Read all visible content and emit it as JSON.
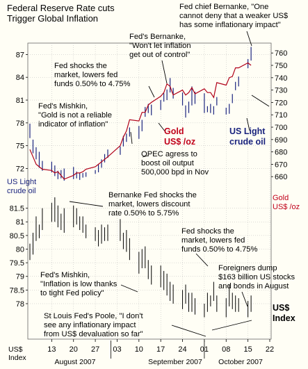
{
  "header": {
    "title": "Federal Reserve Rate cuts\nTrigger Global Inflation"
  },
  "annotations": {
    "a_bernanke_weaker": "Fed chief Bernanke, \"One\ncannot deny that a weaker US$\nhas some inflationary impact\"",
    "a_bernanke_inflation": "Fed's Bernanke,\n\"Won't let inflation\nget out of control\"",
    "a_fed_shocks_1": "Fed shocks the\nmarket, lowers fed\nfunds 0.50% to 4.75%",
    "a_mishkin_gold": "Fed's Mishkin,\n\"Gold is not a reliable\nindicator of inflation\"",
    "a_opec": "OPEC agress to\nboost oil output\n500,000 bpd in Nov",
    "a_discount": "Bernanke Fed shocks the\nmarket, lowers discount\nrate 0.50% to 5.75%",
    "a_fed_shocks_2": "Fed shocks the\nmarket, lowers fed\nfunds 0.50% to 4.75%",
    "a_mishkin_low": "Fed's Mishkin,\n\"Inflation is low thanks\nto tight Fed policy\"",
    "a_foreigners": "Foreigners dump\n$163 billion US stocks\nand bonds in August",
    "a_poole": "St Louis Fed's Poole, \"I don't\nsee any inflationary impact\nfrom US$ devaluation so far\""
  },
  "labels": {
    "gold_bold": "Gold\nUS$ /oz",
    "oil_bold": "US Light\ncrude oil",
    "oil_left": "US Light\ncrude oil",
    "gold_right": "Gold\nUS$ /oz",
    "usd_index_bold": "US$\nIndex",
    "usd_index_left": "US$\nIndex"
  },
  "colors": {
    "gold": "#b00018",
    "oil": "#1a237e",
    "usd": "#000000",
    "grid": "#b8b8b8",
    "bg": "#fffef5",
    "connector": "#000000"
  },
  "chart_data": [
    {
      "type": "line",
      "x_type": "date",
      "x": [
        "2007-08-06",
        "2007-08-07",
        "2007-08-08",
        "2007-08-09",
        "2007-08-10",
        "2007-08-13",
        "2007-08-14",
        "2007-08-15",
        "2007-08-16",
        "2007-08-17",
        "2007-08-20",
        "2007-08-21",
        "2007-08-22",
        "2007-08-23",
        "2007-08-24",
        "2007-08-27",
        "2007-08-28",
        "2007-08-29",
        "2007-08-30",
        "2007-08-31",
        "2007-09-04",
        "2007-09-05",
        "2007-09-06",
        "2007-09-07",
        "2007-09-10",
        "2007-09-11",
        "2007-09-12",
        "2007-09-13",
        "2007-09-14",
        "2007-09-17",
        "2007-09-18",
        "2007-09-19",
        "2007-09-20",
        "2007-09-21",
        "2007-09-24",
        "2007-09-25",
        "2007-09-26",
        "2007-09-27",
        "2007-09-28",
        "2007-10-01",
        "2007-10-02",
        "2007-10-03",
        "2007-10-04",
        "2007-10-05",
        "2007-10-08",
        "2007-10-09",
        "2007-10-10",
        "2007-10-11",
        "2007-10-12",
        "2007-10-15",
        "2007-10-16"
      ],
      "x_ticks": [
        "13",
        "20",
        "27",
        "03",
        "10",
        "17",
        "24",
        "01",
        "08",
        "15",
        "22"
      ],
      "x_month_labels": [
        "August 2007",
        "September 2007",
        "October 2007"
      ],
      "series": [
        {
          "name": "US Light crude oil",
          "axis": "left",
          "style": "bar",
          "high": [
            77.9,
            75.8,
            74.8,
            74.2,
            73.0,
            72.9,
            72.4,
            71.7,
            71.8,
            72.0,
            72.2,
            71.6,
            71.4,
            71.4,
            71.5,
            71.8,
            72.6,
            73.2,
            73.9,
            74.5,
            74.9,
            76.3,
            76.6,
            77.4,
            77.6,
            78.4,
            80.1,
            80.5,
            80.4,
            81.0,
            81.9,
            82.4,
            83.9,
            82.6,
            82.0,
            80.3,
            80.8,
            82.8,
            82.1,
            81.9,
            80.2,
            80.5,
            80.2,
            81.4,
            80.0,
            80.5,
            81.8,
            83.4,
            84.1,
            86.4,
            88.0
          ],
          "low": [
            76.0,
            74.0,
            73.2,
            72.1,
            71.7,
            71.5,
            71.0,
            70.6,
            70.7,
            70.4,
            70.6,
            70.7,
            70.5,
            70.8,
            70.9,
            71.3,
            71.5,
            72.1,
            72.8,
            73.4,
            73.8,
            74.9,
            75.5,
            76.2,
            75.9,
            76.9,
            78.8,
            79.3,
            79.0,
            79.7,
            80.8,
            81.0,
            82.0,
            81.2,
            80.3,
            78.7,
            79.3,
            80.3,
            80.5,
            79.3,
            79.4,
            79.3,
            79.1,
            80.3,
            79.1,
            79.2,
            80.6,
            82.3,
            82.8,
            85.2,
            86.2
          ],
          "ylim": [
            69.3,
            88.5
          ]
        },
        {
          "name": "Gold US$ /oz",
          "axis": "right",
          "style": "line",
          "values": [
            682,
            676,
            670,
            668,
            666,
            665,
            663,
            664,
            661,
            658,
            661,
            663,
            663,
            664,
            666,
            668,
            670,
            672,
            674,
            676,
            685,
            692,
            697,
            706,
            705,
            712,
            712,
            718,
            720,
            725,
            728,
            735,
            733,
            726,
            730,
            726,
            728,
            732,
            727,
            731,
            728,
            728,
            724,
            736,
            734,
            740,
            741,
            748,
            748,
            752,
            750
          ],
          "ylim": [
            650,
            768
          ]
        },
        {
          "name": "US$ Index",
          "axis": "right_lower",
          "style": "bar",
          "high": [
            80.2,
            80.6,
            81.2,
            80.9,
            81.5,
            81.7,
            81.9,
            81.6,
            81.3,
            81.5,
            81.6,
            81.5,
            81.2,
            81.2,
            80.9,
            80.8,
            80.7,
            80.9,
            80.8,
            80.9,
            81.1,
            80.6,
            80.7,
            80.4,
            79.9,
            80.0,
            80.1,
            79.6,
            79.4,
            79.4,
            79.2,
            79.1,
            78.8,
            78.7,
            78.5,
            78.7,
            78.4,
            78.4,
            78.2,
            78.0,
            78.4,
            78.3,
            78.8,
            78.3,
            78.2,
            78.7,
            78.4,
            78.3,
            78.2,
            78.1,
            78.3
          ],
          "low": [
            79.6,
            79.8,
            80.3,
            80.4,
            80.7,
            81.0,
            81.0,
            80.8,
            80.7,
            80.6,
            80.8,
            80.9,
            80.7,
            80.6,
            80.4,
            80.3,
            80.1,
            80.2,
            80.3,
            80.3,
            80.3,
            80.0,
            79.9,
            79.6,
            79.1,
            79.3,
            79.3,
            78.9,
            78.7,
            78.6,
            78.5,
            78.3,
            78.1,
            78.0,
            77.8,
            78.0,
            77.7,
            77.7,
            77.6,
            77.5,
            77.7,
            77.9,
            78.1,
            77.7,
            77.5,
            77.9,
            77.8,
            77.7,
            77.7,
            77.5,
            77.7
          ],
          "ylim": [
            76.7,
            82.0
          ]
        }
      ],
      "left_ticks_oil": [
        "87",
        "84",
        "81",
        "78",
        "75",
        "72"
      ],
      "right_ticks_gold": [
        "760",
        "750",
        "740",
        "730",
        "720",
        "710",
        "700",
        "690",
        "680",
        "670",
        "660"
      ],
      "left_ticks_usd": [
        "81.5",
        "81",
        "80.5",
        "80",
        "79.5",
        "79",
        "78.5",
        "78"
      ],
      "grid": true
    }
  ]
}
